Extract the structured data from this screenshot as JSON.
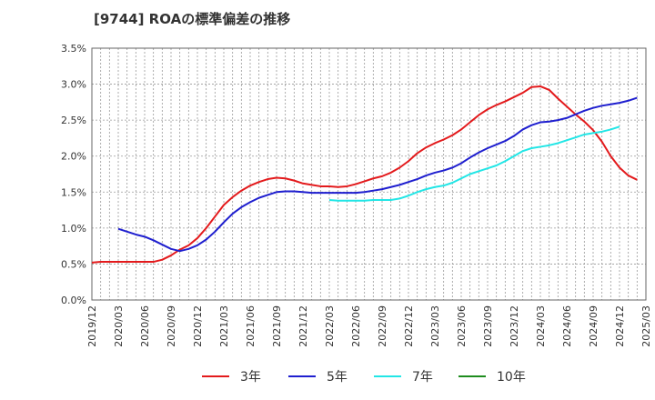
{
  "chart_data": {
    "type": "line",
    "title": "[9744]  ROAの標準偏差の推移",
    "xlabel": "",
    "ylabel": "",
    "ylim": [
      0,
      3.5
    ],
    "y_ticks": [
      "0.0%",
      "0.5%",
      "1.0%",
      "1.5%",
      "2.0%",
      "2.5%",
      "3.0%",
      "3.5%"
    ],
    "x_ticks": [
      "2019/12",
      "2020/03",
      "2020/06",
      "2020/09",
      "2020/12",
      "2021/03",
      "2021/06",
      "2021/09",
      "2021/12",
      "2022/03",
      "2022/06",
      "2022/09",
      "2022/12",
      "2023/03",
      "2023/06",
      "2023/09",
      "2023/12",
      "2024/03",
      "2024/06",
      "2024/09",
      "2024/12",
      "2025/03"
    ],
    "grid": true,
    "legend_position": "bottom",
    "series": [
      {
        "name": "3年",
        "color": "#e31a1c",
        "start": "2019/12",
        "values": [
          0.52,
          0.53,
          0.53,
          0.53,
          0.53,
          0.53,
          0.53,
          0.53,
          0.56,
          0.62,
          0.7,
          0.76,
          0.86,
          1.0,
          1.16,
          1.32,
          1.43,
          1.52,
          1.59,
          1.64,
          1.68,
          1.7,
          1.69,
          1.66,
          1.62,
          1.6,
          1.58,
          1.58,
          1.57,
          1.58,
          1.61,
          1.65,
          1.69,
          1.72,
          1.77,
          1.84,
          1.93,
          2.04,
          2.12,
          2.18,
          2.23,
          2.29,
          2.37,
          2.47,
          2.57,
          2.65,
          2.71,
          2.76,
          2.82,
          2.88,
          2.96,
          2.97,
          2.92,
          2.8,
          2.69,
          2.58,
          2.48,
          2.36,
          2.2,
          2.0,
          1.84,
          1.73,
          1.67
        ]
      },
      {
        "name": "5年",
        "color": "#1f1fcf",
        "start": "2020/03",
        "values": [
          0.99,
          0.95,
          0.91,
          0.88,
          0.83,
          0.77,
          0.71,
          0.68,
          0.71,
          0.76,
          0.84,
          0.95,
          1.08,
          1.2,
          1.29,
          1.36,
          1.42,
          1.46,
          1.5,
          1.51,
          1.51,
          1.5,
          1.49,
          1.49,
          1.49,
          1.49,
          1.49,
          1.49,
          1.5,
          1.52,
          1.54,
          1.57,
          1.6,
          1.64,
          1.68,
          1.73,
          1.77,
          1.8,
          1.84,
          1.9,
          1.98,
          2.05,
          2.11,
          2.16,
          2.21,
          2.28,
          2.37,
          2.43,
          2.47,
          2.48,
          2.5,
          2.53,
          2.58,
          2.63,
          2.67,
          2.7,
          2.72,
          2.74,
          2.77,
          2.81
        ]
      },
      {
        "name": "7年",
        "color": "#22e6e6",
        "start": "2022/03",
        "values": [
          1.39,
          1.38,
          1.38,
          1.38,
          1.38,
          1.39,
          1.39,
          1.39,
          1.41,
          1.45,
          1.5,
          1.54,
          1.57,
          1.59,
          1.63,
          1.69,
          1.75,
          1.79,
          1.83,
          1.87,
          1.93,
          2.0,
          2.07,
          2.11,
          2.13,
          2.15,
          2.18,
          2.22,
          2.26,
          2.3,
          2.32,
          2.34,
          2.37,
          2.41
        ]
      },
      {
        "name": "10年",
        "color": "#1e8c1e",
        "start": "",
        "values": []
      }
    ]
  }
}
